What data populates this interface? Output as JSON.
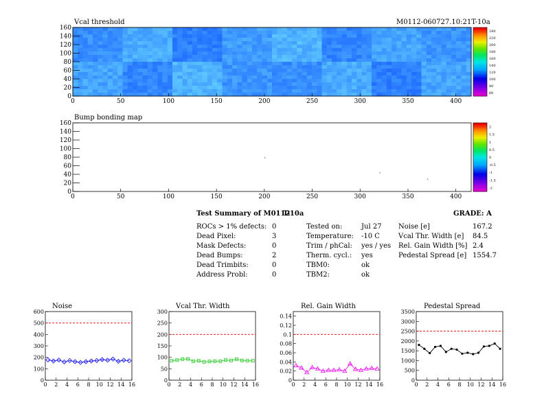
{
  "vcal": {
    "title": "Vcal threshold",
    "module_label": "M0112-060727.10:21T-10a",
    "x_ticks": [
      "0",
      "50",
      "100",
      "150",
      "200",
      "250",
      "300",
      "350",
      "400"
    ],
    "y_ticks": [
      "0",
      "20",
      "40",
      "60",
      "80",
      "100",
      "120",
      "140",
      "160"
    ],
    "colorbar_ticks": [
      "60",
      "80",
      "100",
      "120",
      "140",
      "160",
      "180",
      "200",
      "220",
      "240"
    ],
    "xlim": [
      0,
      416
    ],
    "ylim": [
      0,
      160
    ]
  },
  "bump": {
    "title": "Bump bonding map",
    "x_ticks": [
      "0",
      "50",
      "100",
      "150",
      "200",
      "250",
      "300",
      "350",
      "400"
    ],
    "y_ticks": [
      "0",
      "20",
      "40",
      "60",
      "80",
      "100",
      "120",
      "140",
      "160"
    ],
    "colorbar_ticks": [
      "-2",
      "-1.5",
      "-1",
      "-0.5",
      "0",
      "0.5",
      "1",
      "1.5",
      "2"
    ],
    "xlim": [
      0,
      416
    ],
    "ylim": [
      0,
      160
    ]
  },
  "summary": {
    "title": "Test Summary of M0112",
    "temp_tag": "T-10a",
    "grade": "GRADE:  A",
    "left": [
      {
        "label": "ROCs > 1% defects:",
        "value": "0"
      },
      {
        "label": "Dead Pixel:",
        "value": "3"
      },
      {
        "label": "Mask Defects:",
        "value": "0"
      },
      {
        "label": "Dead Bumps:",
        "value": "2"
      },
      {
        "label": "Dead Trimbits:",
        "value": "0"
      },
      {
        "label": "Address Probl:",
        "value": "0"
      }
    ],
    "middle": [
      {
        "label": "Tested on:",
        "value": "Jul 27"
      },
      {
        "label": "Temperature:",
        "value": "-10 C"
      },
      {
        "label": "Trim / phCal:",
        "value": "yes / yes"
      },
      {
        "label": "Therm. cycl.:",
        "value": "yes"
      },
      {
        "label": "TBM0:",
        "value": "ok"
      },
      {
        "label": "TBM2:",
        "value": "ok"
      }
    ],
    "right": [
      {
        "label": "Noise [e]",
        "value": "167.2"
      },
      {
        "label": "Vcal Thr. Width [e]",
        "value": "84.5"
      },
      {
        "label": "Rel. Gain Width [%]",
        "value": "2.4"
      },
      {
        "label": "Pedestal Spread [e]",
        "value": "1554.7"
      }
    ]
  },
  "chart_data": [
    {
      "type": "scatter",
      "title": "Noise",
      "x_ticks": [
        "0",
        "2",
        "4",
        "6",
        "8",
        "10",
        "12",
        "14",
        "16"
      ],
      "y_ticks": [
        "0",
        "100",
        "200",
        "300",
        "400",
        "500",
        "600"
      ],
      "xlim": [
        0,
        16
      ],
      "ylim": [
        0,
        600
      ],
      "threshold": 500,
      "color": "#2222ee",
      "marker": "diamond",
      "x": [
        0.5,
        1.5,
        2.5,
        3.5,
        4.5,
        5.5,
        6.5,
        7.5,
        8.5,
        9.5,
        10.5,
        11.5,
        12.5,
        13.5,
        14.5,
        15.5
      ],
      "values": [
        178,
        168,
        176,
        160,
        172,
        162,
        155,
        162,
        168,
        172,
        180,
        175,
        185,
        165,
        175,
        170
      ]
    },
    {
      "type": "scatter",
      "title": "Vcal Thr. Width",
      "x_ticks": [
        "0",
        "2",
        "4",
        "6",
        "8",
        "10",
        "12",
        "14",
        "16"
      ],
      "y_ticks": [
        "0",
        "50",
        "100",
        "150",
        "200",
        "250",
        "300"
      ],
      "xlim": [
        0,
        16
      ],
      "ylim": [
        0,
        300
      ],
      "threshold": 200,
      "color": "#33cc33",
      "marker": "square",
      "x": [
        0.5,
        1.5,
        2.5,
        3.5,
        4.5,
        5.5,
        6.5,
        7.5,
        8.5,
        9.5,
        10.5,
        11.5,
        12.5,
        13.5,
        14.5,
        15.5
      ],
      "values": [
        85,
        88,
        92,
        93,
        83,
        85,
        80,
        82,
        83,
        83,
        88,
        86,
        92,
        86,
        85,
        85
      ]
    },
    {
      "type": "scatter",
      "title": "Rel. Gain Width",
      "x_ticks": [
        "0",
        "2",
        "4",
        "6",
        "8",
        "10",
        "12",
        "14",
        "16"
      ],
      "y_ticks": [
        "0",
        "0.02",
        "0.04",
        "0.06",
        "0.08",
        "0.1",
        "0.12",
        "0.14"
      ],
      "xlim": [
        0,
        16
      ],
      "ylim": [
        0,
        0.15
      ],
      "threshold": 0.1,
      "color": "#ee22ee",
      "marker": "triangle",
      "x": [
        0.5,
        1.5,
        2.5,
        3.5,
        4.5,
        5.5,
        6.5,
        7.5,
        8.5,
        9.5,
        10.5,
        11.5,
        12.5,
        13.5,
        14.5,
        15.5
      ],
      "values": [
        0.032,
        0.027,
        0.017,
        0.028,
        0.025,
        0.02,
        0.022,
        0.022,
        0.023,
        0.02,
        0.036,
        0.024,
        0.022,
        0.025,
        0.026,
        0.025
      ]
    },
    {
      "type": "line",
      "title": "Pedestal Spread",
      "x_ticks": [
        "0",
        "2",
        "4",
        "6",
        "8",
        "10",
        "12",
        "14",
        "16"
      ],
      "y_ticks": [
        "0",
        "500",
        "1000",
        "1500",
        "2000",
        "2500",
        "3000",
        "3500"
      ],
      "xlim": [
        0,
        16
      ],
      "ylim": [
        0,
        3500
      ],
      "threshold": 2500,
      "color": "#000000",
      "marker": "circle",
      "x": [
        0.5,
        1.5,
        2.5,
        3.5,
        4.5,
        5.5,
        6.5,
        7.5,
        8.5,
        9.5,
        10.5,
        11.5,
        12.5,
        13.5,
        14.5,
        15.5
      ],
      "values": [
        1800,
        1600,
        1380,
        1700,
        1750,
        1440,
        1600,
        1560,
        1350,
        1400,
        1330,
        1400,
        1720,
        1750,
        1870,
        1600
      ]
    }
  ],
  "colors": {
    "threshold_line": "#ee0000",
    "map_low": "#2a6cf0",
    "map_high": "#88d8ff"
  }
}
